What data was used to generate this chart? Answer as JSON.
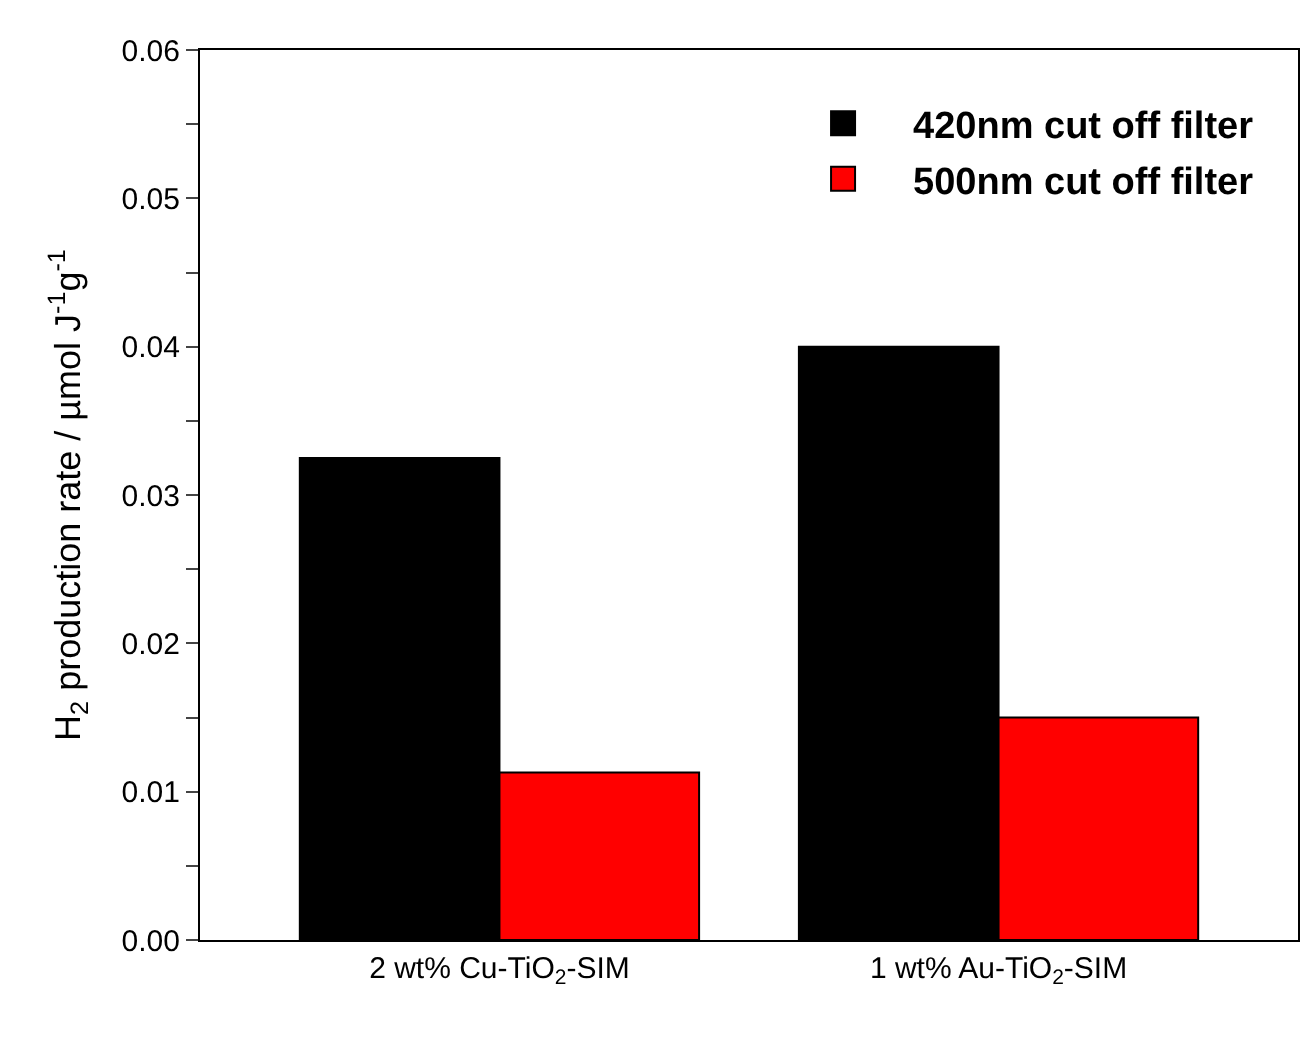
{
  "chart_data": {
    "type": "bar",
    "ylabel": "H$_{2}$ production rate / µmol J$^{-1}$g$^{-1}$",
    "categories": [
      "2 wt% Cu-TiO$_{2}$-SIM",
      "1 wt% Au-TiO$_{2}$-SIM"
    ],
    "series": [
      {
        "name": "420nm cut off filter",
        "color": "#000000",
        "values": [
          0.0325,
          0.04
        ]
      },
      {
        "name": "500nm cut off filter",
        "color": "#ff0000",
        "values": [
          0.0113,
          0.015
        ]
      }
    ],
    "ylim": [
      0,
      0.06
    ],
    "yticks": [
      "0.00",
      {
        "value": 0.005,
        "label": null
      },
      0.01,
      {
        "value": 0.015,
        "label": null
      },
      0.02,
      {
        "value": 0.025,
        "label": null
      },
      0.03,
      {
        "value": 0.035,
        "label": null
      },
      0.04,
      {
        "value": 0.045,
        "label": null
      },
      0.05,
      {
        "value": 0.055,
        "label": null
      },
      0.06
    ],
    "legend": "top right"
  }
}
